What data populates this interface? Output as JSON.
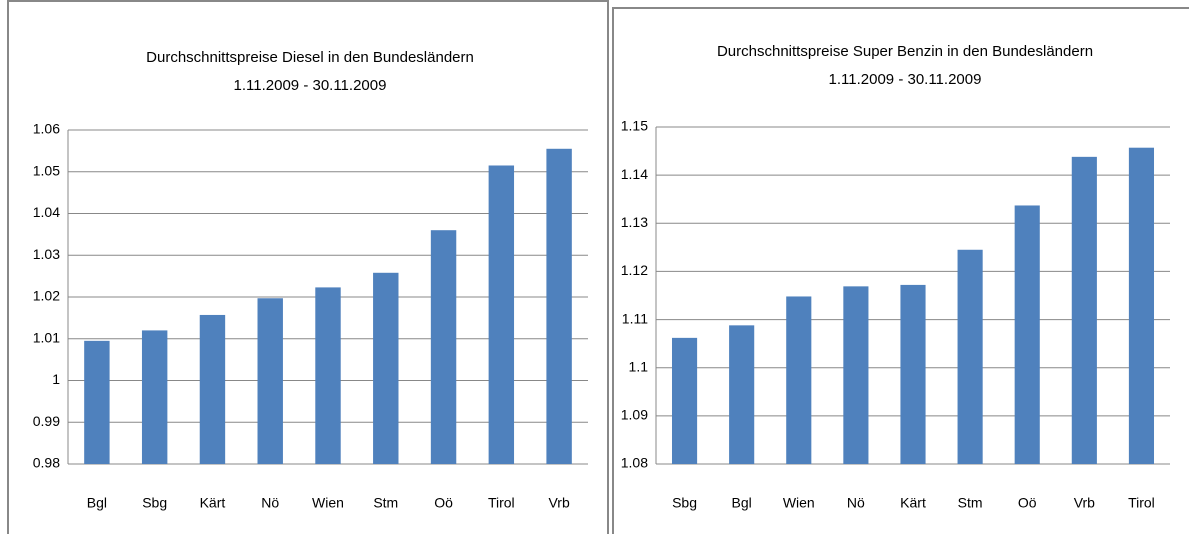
{
  "chart_data": [
    {
      "type": "bar",
      "title": "Durchschnittspreise Diesel in den Bundesländern",
      "subtitle": "1.11.2009 - 30.11.2009",
      "categories": [
        "Bgl",
        "Sbg",
        "Kärt",
        "Nö",
        "Wien",
        "Stm",
        "Oö",
        "Tirol",
        "Vrb"
      ],
      "values": [
        1.0095,
        1.012,
        1.0157,
        1.0197,
        1.0223,
        1.0258,
        1.036,
        1.0515,
        1.0555
      ],
      "color": "#4f81bd",
      "ylim": [
        0.98,
        1.06
      ],
      "yticks": [
        0.98,
        0.99,
        1,
        1.01,
        1.02,
        1.03,
        1.04,
        1.05,
        1.06
      ],
      "grid": true
    },
    {
      "type": "bar",
      "title": "Durchschnittspreise Super Benzin  in den Bundesländern",
      "subtitle": "1.11.2009 - 30.11.2009",
      "categories": [
        "Sbg",
        "Bgl",
        "Wien",
        "Nö",
        "Kärt",
        "Stm",
        "Oö",
        "Vrb",
        "Tirol"
      ],
      "values": [
        1.1062,
        1.1088,
        1.1148,
        1.1169,
        1.1172,
        1.1245,
        1.1337,
        1.1438,
        1.1457
      ],
      "color": "#4f81bd",
      "ylim": [
        1.08,
        1.15
      ],
      "yticks": [
        1.08,
        1.09,
        1.1,
        1.11,
        1.12,
        1.13,
        1.14,
        1.15
      ],
      "grid": true
    }
  ]
}
